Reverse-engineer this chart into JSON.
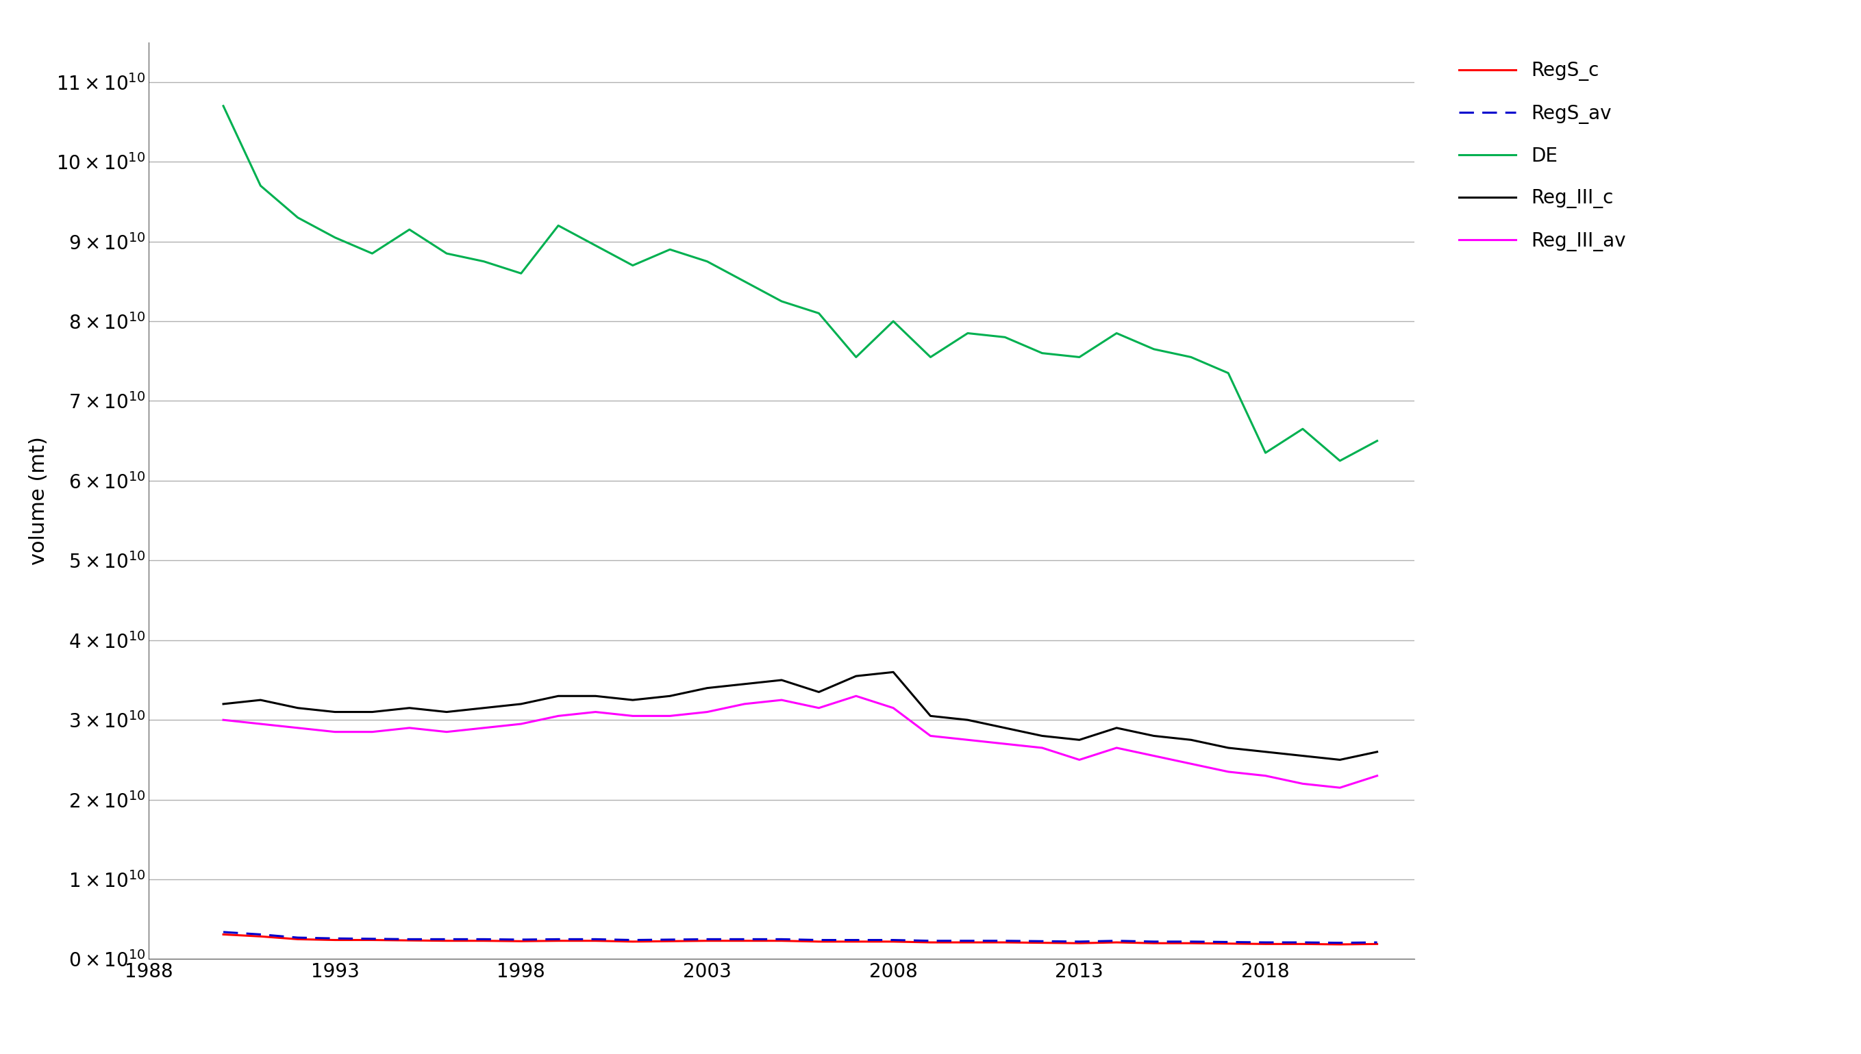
{
  "years": [
    1990,
    1991,
    1992,
    1993,
    1994,
    1995,
    1996,
    1997,
    1998,
    1999,
    2000,
    2001,
    2002,
    2003,
    2004,
    2005,
    2006,
    2007,
    2008,
    2009,
    2010,
    2011,
    2012,
    2013,
    2014,
    2015,
    2016,
    2017,
    2018,
    2019,
    2020,
    2021
  ],
  "DE": [
    107000000000.0,
    97000000000.0,
    93000000000.0,
    90500000000.0,
    88500000000.0,
    91500000000.0,
    88500000000.0,
    87500000000.0,
    86000000000.0,
    92000000000.0,
    89500000000.0,
    87000000000.0,
    89000000000.0,
    87500000000.0,
    85000000000.0,
    82500000000.0,
    81000000000.0,
    75500000000.0,
    80000000000.0,
    75500000000.0,
    78500000000.0,
    78000000000.0,
    76000000000.0,
    75500000000.0,
    78500000000.0,
    76500000000.0,
    75500000000.0,
    73500000000.0,
    63500000000.0,
    66500000000.0,
    62500000000.0,
    65000000000.0
  ],
  "Reg_III_c": [
    32000000000.0,
    32500000000.0,
    31500000000.0,
    31000000000.0,
    31000000000.0,
    31500000000.0,
    31000000000.0,
    31500000000.0,
    32000000000.0,
    33000000000.0,
    33000000000.0,
    32500000000.0,
    33000000000.0,
    34000000000.0,
    34500000000.0,
    35000000000.0,
    33500000000.0,
    35500000000.0,
    36000000000.0,
    30500000000.0,
    30000000000.0,
    29000000000.0,
    28000000000.0,
    27500000000.0,
    29000000000.0,
    28000000000.0,
    27500000000.0,
    26500000000.0,
    26000000000.0,
    25500000000.0,
    25000000000.0,
    26000000000.0
  ],
  "Reg_III_av": [
    30000000000.0,
    29500000000.0,
    29000000000.0,
    28500000000.0,
    28500000000.0,
    29000000000.0,
    28500000000.0,
    29000000000.0,
    29500000000.0,
    30500000000.0,
    31000000000.0,
    30500000000.0,
    30500000000.0,
    31000000000.0,
    32000000000.0,
    32500000000.0,
    31500000000.0,
    33000000000.0,
    31500000000.0,
    28000000000.0,
    27500000000.0,
    27000000000.0,
    26500000000.0,
    25000000000.0,
    26500000000.0,
    25500000000.0,
    24500000000.0,
    23500000000.0,
    23000000000.0,
    22000000000.0,
    21500000000.0,
    23000000000.0
  ],
  "RegS_c": [
    3100000000.0,
    2850000000.0,
    2500000000.0,
    2400000000.0,
    2400000000.0,
    2350000000.0,
    2300000000.0,
    2300000000.0,
    2250000000.0,
    2300000000.0,
    2300000000.0,
    2200000000.0,
    2250000000.0,
    2300000000.0,
    2300000000.0,
    2300000000.0,
    2200000000.0,
    2200000000.0,
    2200000000.0,
    2100000000.0,
    2100000000.0,
    2100000000.0,
    2050000000.0,
    2000000000.0,
    2100000000.0,
    2000000000.0,
    2000000000.0,
    1950000000.0,
    1900000000.0,
    1900000000.0,
    1850000000.0,
    1900000000.0
  ],
  "RegS_av": [
    3400000000.0,
    3100000000.0,
    2700000000.0,
    2600000000.0,
    2550000000.0,
    2500000000.0,
    2500000000.0,
    2500000000.0,
    2450000000.0,
    2500000000.0,
    2500000000.0,
    2400000000.0,
    2450000000.0,
    2500000000.0,
    2500000000.0,
    2500000000.0,
    2400000000.0,
    2400000000.0,
    2400000000.0,
    2300000000.0,
    2300000000.0,
    2300000000.0,
    2250000000.0,
    2200000000.0,
    2300000000.0,
    2200000000.0,
    2200000000.0,
    2150000000.0,
    2100000000.0,
    2100000000.0,
    2050000000.0,
    2100000000.0
  ],
  "ylim": [
    0,
    115000000000.0
  ],
  "xlim": [
    1988,
    2022
  ],
  "ylabel": "volume (mt)",
  "xticks": [
    1988,
    1993,
    1998,
    2003,
    2008,
    2013,
    2018
  ],
  "yticks": [
    0,
    10000000000.0,
    20000000000.0,
    30000000000.0,
    40000000000.0,
    50000000000.0,
    60000000000.0,
    70000000000.0,
    80000000000.0,
    90000000000.0,
    100000000000.0,
    110000000000.0
  ],
  "ytick_labels": [
    "0×10¹⁰",
    "1×10¹⁰",
    "2×10¹⁰",
    "3×10¹⁰",
    "4×10¹⁰",
    "5×10¹⁰",
    "6×10¹⁰",
    "7×10¹⁰",
    "8×10¹⁰",
    "9×10¹⁰",
    "10×10¹⁰",
    "11×10¹⁰"
  ],
  "colors": {
    "RegS_c": "#ff0000",
    "RegS_av": "#0000cd",
    "DE": "#00b050",
    "Reg_III_c": "#000000",
    "Reg_III_av": "#ff00ff"
  },
  "background_color": "#ffffff",
  "grid_color": "#b0b0b0",
  "linewidth": 2.2,
  "tick_fontsize": 20,
  "label_fontsize": 22,
  "legend_fontsize": 20
}
